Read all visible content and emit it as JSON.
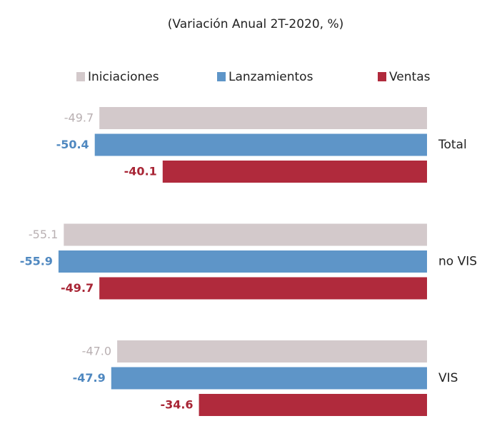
{
  "chart_data": {
    "type": "bar",
    "orientation": "horizontal",
    "title": "(Variación Anual 2T-2020, %)",
    "categories": [
      "Total",
      "no VIS",
      "VIS"
    ],
    "series": [
      {
        "name": "Iniciaciones",
        "color": "#d3c9cb",
        "values": [
          -49.7,
          -55.1,
          -47.0
        ],
        "value_labels": [
          "-49.7",
          "-55.1",
          "-47.0"
        ]
      },
      {
        "name": "Lanzamientos",
        "color": "#5e95c8",
        "values": [
          -50.4,
          -55.9,
          -47.9
        ],
        "value_labels": [
          "-50.4",
          "-55.9",
          "-47.9"
        ]
      },
      {
        "name": "Ventas",
        "color": "#b02a3c",
        "values": [
          -40.1,
          -49.7,
          -34.6
        ],
        "value_labels": [
          "-40.1",
          "-49.7",
          "-34.6"
        ]
      }
    ],
    "xlim": [
      -56,
      0
    ],
    "legend": "top"
  }
}
